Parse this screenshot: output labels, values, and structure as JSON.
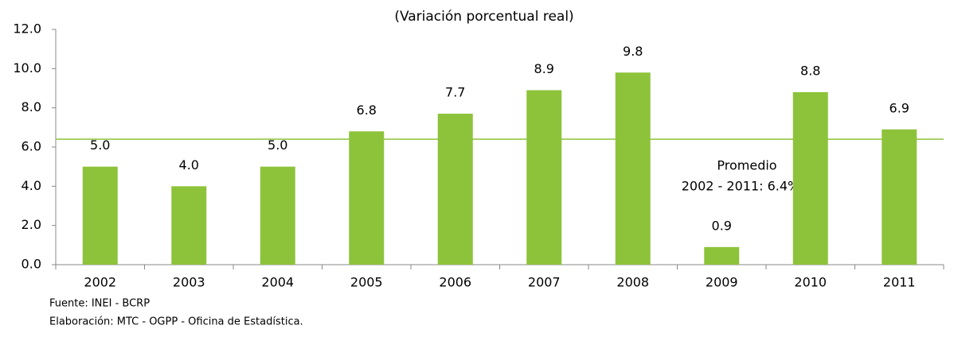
{
  "chart_data": {
    "type": "bar",
    "title": "(Variación porcentual real)",
    "categories": [
      "2002",
      "2003",
      "2004",
      "2005",
      "2006",
      "2007",
      "2008",
      "2009",
      "2010",
      "2011"
    ],
    "values": [
      5.0,
      4.0,
      5.0,
      6.8,
      7.7,
      8.9,
      9.8,
      0.9,
      8.8,
      6.9
    ],
    "value_labels": [
      "5.0",
      "4.0",
      "5.0",
      "6.8",
      "7.7",
      "8.9",
      "9.8",
      "0.9",
      "8.8",
      "6.9"
    ],
    "color": "#8dc33b",
    "ylim": [
      0,
      12
    ],
    "yticks": [
      {
        "value": 0,
        "label": "0.0"
      },
      {
        "value": 2,
        "label": "2.0"
      },
      {
        "value": 4,
        "label": "4.0"
      },
      {
        "value": 6,
        "label": "6.0"
      },
      {
        "value": 8,
        "label": "8.0"
      },
      {
        "value": 10,
        "label": "10.0"
      },
      {
        "value": 12,
        "label": "12.0"
      }
    ],
    "reference_line": {
      "value": 6.4,
      "color": "#8dc33b"
    },
    "annotations": [
      "Promedio",
      "2002 - 2011: 6.4%"
    ],
    "footnotes": [
      "Fuente:  INEI - BCRP",
      "Elaboración: MTC - OGPP - Oficina de Estadística."
    ]
  }
}
